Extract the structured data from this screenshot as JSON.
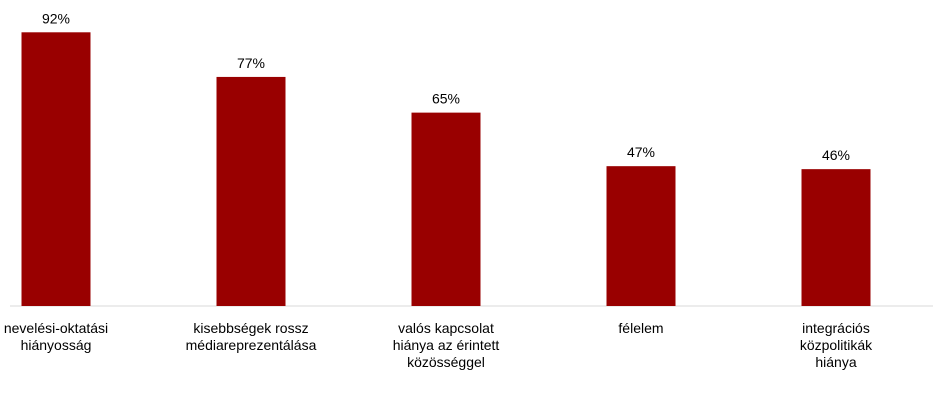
{
  "chart_data": {
    "type": "bar",
    "categories": [
      "nevelési-oktatási\nhiányosság",
      "kisebbségek rossz\nmédiareprezentálása",
      "valós kapcsolat\nhiánya az érintett\nközösséggel",
      "félelem",
      "integrációs\nközpolitikák\nhiánya"
    ],
    "values": [
      92,
      77,
      65,
      47,
      46
    ],
    "data_labels": [
      "92%",
      "77%",
      "65%",
      "47%",
      "46%"
    ],
    "unit": "%",
    "title": "",
    "xlabel": "",
    "ylabel": "",
    "ylim": [
      0,
      100
    ],
    "grid": false,
    "legend": "none",
    "bar_color": "#990000",
    "axis_color": "#d9d9d9"
  }
}
